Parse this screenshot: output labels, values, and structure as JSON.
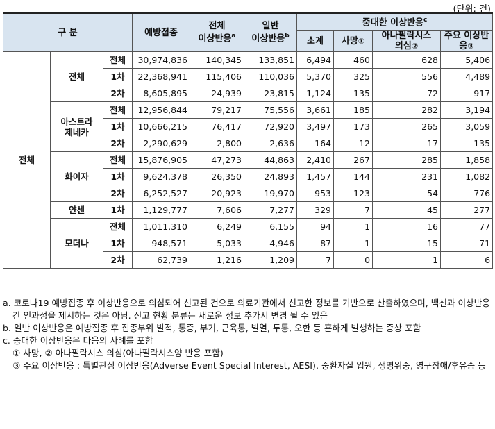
{
  "unit": "(단위: 건)",
  "header": {
    "group_col": "구 분",
    "vaccinations": "예방접종",
    "total_ae_1": "전체",
    "total_ae_2": "이상반응",
    "total_ae_sup": "a",
    "general_ae_1": "일반",
    "general_ae_2": "이상반응",
    "general_ae_sup": "b",
    "serious_ae": "중대한 이상반응",
    "serious_ae_sup": "c",
    "subtotal": "소계",
    "death": "사망",
    "death_mark": "①",
    "anaphylaxis_1": "아나필락시스",
    "anaphylaxis_2": "의심",
    "anaphylaxis_mark": "②",
    "major_ae_1": "주요 이상반",
    "major_ae_2": "응",
    "major_ae_mark": "③"
  },
  "overall_label": "전체",
  "groups": [
    {
      "name": "전체",
      "rows": [
        {
          "dose": "전체",
          "values": [
            "30,974,836",
            "140,345",
            "133,851",
            "6,494",
            "460",
            "628",
            "5,406"
          ]
        },
        {
          "dose": "1차",
          "values": [
            "22,368,941",
            "115,406",
            "110,036",
            "5,370",
            "325",
            "556",
            "4,489"
          ]
        },
        {
          "dose": "2차",
          "values": [
            "8,605,895",
            "24,939",
            "23,815",
            "1,124",
            "135",
            "72",
            "917"
          ]
        }
      ]
    },
    {
      "name": "아스트라\n제네카",
      "rows": [
        {
          "dose": "전체",
          "values": [
            "12,956,844",
            "79,217",
            "75,556",
            "3,661",
            "185",
            "282",
            "3,194"
          ]
        },
        {
          "dose": "1차",
          "values": [
            "10,666,215",
            "76,417",
            "72,920",
            "3,497",
            "173",
            "265",
            "3,059"
          ]
        },
        {
          "dose": "2차",
          "values": [
            "2,290,629",
            "2,800",
            "2,636",
            "164",
            "12",
            "17",
            "135"
          ]
        }
      ]
    },
    {
      "name": "화이자",
      "rows": [
        {
          "dose": "전체",
          "values": [
            "15,876,905",
            "47,273",
            "44,863",
            "2,410",
            "267",
            "285",
            "1,858"
          ]
        },
        {
          "dose": "1차",
          "values": [
            "9,624,378",
            "26,350",
            "24,893",
            "1,457",
            "144",
            "231",
            "1,082"
          ]
        },
        {
          "dose": "2차",
          "values": [
            "6,252,527",
            "20,923",
            "19,970",
            "953",
            "123",
            "54",
            "776"
          ]
        }
      ]
    },
    {
      "name": "얀센",
      "rows": [
        {
          "dose": "1차",
          "values": [
            "1,129,777",
            "7,606",
            "7,277",
            "329",
            "7",
            "45",
            "277"
          ]
        }
      ]
    },
    {
      "name": "모더나",
      "rows": [
        {
          "dose": "전체",
          "values": [
            "1,011,310",
            "6,249",
            "6,155",
            "94",
            "1",
            "16",
            "77"
          ]
        },
        {
          "dose": "1차",
          "values": [
            "948,571",
            "5,033",
            "4,946",
            "87",
            "1",
            "15",
            "71"
          ]
        },
        {
          "dose": "2차",
          "values": [
            "62,739",
            "1,216",
            "1,209",
            "7",
            "0",
            "1",
            "6"
          ]
        }
      ]
    }
  ],
  "notes": {
    "a": "a. 코로나19 예방접종 후 이상반응으로 의심되어 신고된 건으로 의료기관에서 신고한 정보를 기반으로 산출하였으며, 백신과 이상반응 간 인과성을 제시하는 것은 아님. 신고 현황 분류는 새로운 정보 추가시 변경 될 수 있음",
    "b": "b. 일반 이상반응은 예방접종 후 접종부위 발적, 통증, 부기, 근육통, 발열, 두통, 오한 등 흔하게 발생하는 증상 포함",
    "c": "c. 중대한 이상반응은 다음의 사례를 포함",
    "c1": "① 사망, ② 아나필락시스 의심(아나필락시스양 반응 포함)",
    "c2": "③ 주요 이상반응 : 특별관심 이상반응(Adverse Event Special Interest, AESI), 중환자실 입원, 생명위중, 영구장애/후유증 등"
  }
}
